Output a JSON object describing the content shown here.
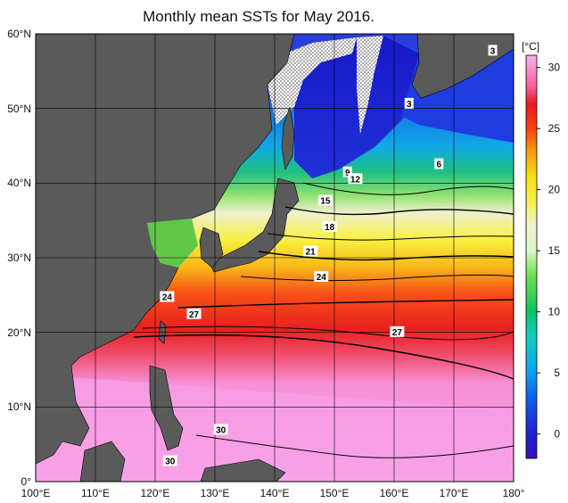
{
  "title": "Monthly mean SSTs for May 2016.",
  "map": {
    "lon_range": [
      100,
      180
    ],
    "lat_range": [
      0,
      60
    ],
    "lat_ticks": [
      "0°",
      "10°N",
      "20°N",
      "30°N",
      "40°N",
      "50°N",
      "60°N"
    ],
    "lon_ticks": [
      "100°E",
      "110°E",
      "120°E",
      "130°E",
      "140°E",
      "150°E",
      "160°E",
      "170°E",
      "180°"
    ],
    "land_color": "#5a5a5a",
    "sea_ice_pattern": "dotted-white",
    "contour_labels": [
      {
        "text": "3",
        "lon": 176.5,
        "lat": 57.8
      },
      {
        "text": "3",
        "lon": 162.5,
        "lat": 50.7
      },
      {
        "text": "6",
        "lon": 167.5,
        "lat": 42.6
      },
      {
        "text": "9",
        "lon": 152.2,
        "lat": 41.5
      },
      {
        "text": "12",
        "lon": 153.5,
        "lat": 40.6
      },
      {
        "text": "15",
        "lon": 148.5,
        "lat": 37.7
      },
      {
        "text": "18",
        "lon": 149.2,
        "lat": 34.2
      },
      {
        "text": "21",
        "lon": 146.0,
        "lat": 30.9
      },
      {
        "text": "24",
        "lon": 147.8,
        "lat": 27.5
      },
      {
        "text": "24",
        "lon": 122.0,
        "lat": 24.8
      },
      {
        "text": "27",
        "lon": 126.5,
        "lat": 22.5
      },
      {
        "text": "27",
        "lon": 160.5,
        "lat": 20.1
      },
      {
        "text": "30",
        "lon": 131.0,
        "lat": 7.0
      },
      {
        "text": "30",
        "lon": 122.5,
        "lat": 2.8
      }
    ]
  },
  "colorbar": {
    "unit": "[°C]",
    "ticks": [
      "0",
      "5",
      "10",
      "15",
      "20",
      "25",
      "30"
    ],
    "range": [
      -2,
      31
    ],
    "stops": [
      {
        "v": -2,
        "c": "#3a10b8"
      },
      {
        "v": 0,
        "c": "#2020d0"
      },
      {
        "v": 3,
        "c": "#1060e8"
      },
      {
        "v": 5,
        "c": "#10a0f0"
      },
      {
        "v": 8,
        "c": "#10d0c0"
      },
      {
        "v": 10,
        "c": "#10c060"
      },
      {
        "v": 13,
        "c": "#70e050"
      },
      {
        "v": 15,
        "c": "#d8f8c0"
      },
      {
        "v": 17,
        "c": "#f0f0d8"
      },
      {
        "v": 19,
        "c": "#f8f050"
      },
      {
        "v": 21,
        "c": "#f8e010"
      },
      {
        "v": 23,
        "c": "#f8a010"
      },
      {
        "v": 25,
        "c": "#f84010"
      },
      {
        "v": 27,
        "c": "#e81820"
      },
      {
        "v": 28.5,
        "c": "#f860a0"
      },
      {
        "v": 31,
        "c": "#f8b0f0"
      }
    ]
  }
}
